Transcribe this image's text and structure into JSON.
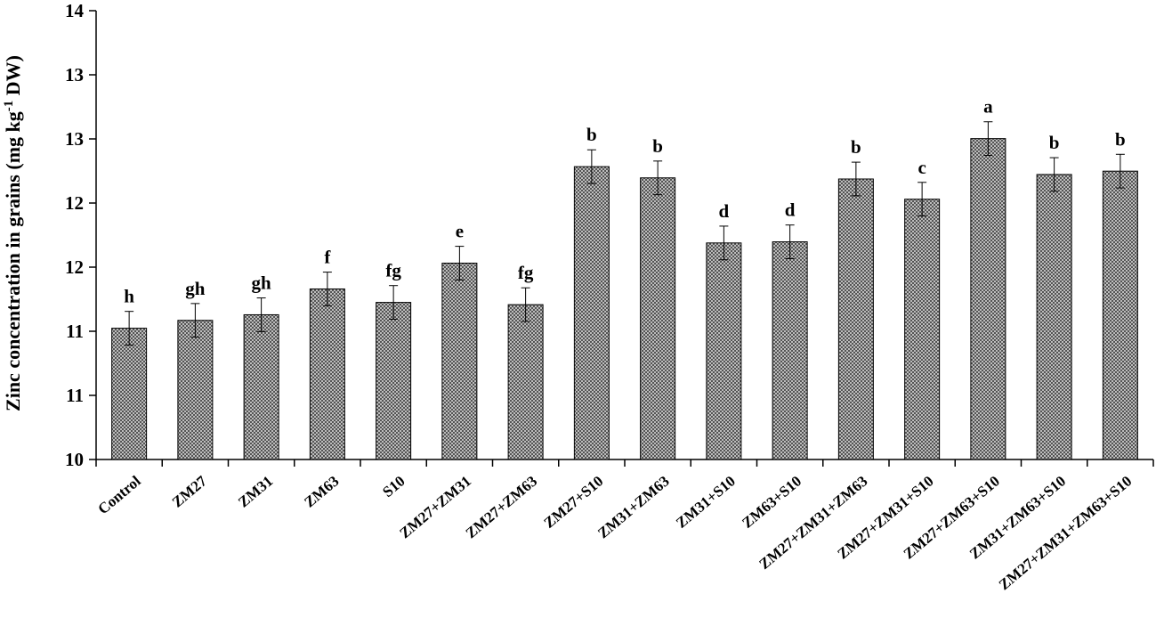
{
  "chart_data": {
    "type": "bar",
    "title": "",
    "xlabel": "",
    "ylabel": {
      "main": "Zinc concentration in grains (mg kg",
      "sup": "-1",
      "tail": " DW)"
    },
    "y_tick_labels": [
      "10",
      "11",
      "11",
      "12",
      "12",
      "13",
      "13",
      "14"
    ],
    "ylim": [
      10,
      14
    ],
    "grid": false,
    "legend": "none",
    "fill_pattern": "crosshatch",
    "bar_color": "#9a9a9a",
    "categories": [
      "Control",
      "ZM27",
      "ZM31",
      "ZM63",
      "S10",
      "ZM27+ZM31",
      "ZM27+ZM63",
      "ZM27+S10",
      "ZM31+ZM63",
      "ZM31+S10",
      "ZM63+S10",
      "ZM27+ZM31+ZM63",
      "ZM27+ZM31+S10",
      "ZM27+ZM63+S10",
      "ZM31+ZM63+S10",
      "ZM27+ZM31+ZM63+S10"
    ],
    "values": [
      11.17,
      11.24,
      11.29,
      11.52,
      11.4,
      11.75,
      11.38,
      12.61,
      12.51,
      11.93,
      11.94,
      12.5,
      12.32,
      12.86,
      12.54,
      12.57
    ],
    "errors": [
      0.15,
      0.15,
      0.15,
      0.15,
      0.15,
      0.15,
      0.15,
      0.15,
      0.15,
      0.15,
      0.15,
      0.15,
      0.15,
      0.15,
      0.15,
      0.15
    ],
    "significance_letters": [
      "h",
      "gh",
      "gh",
      "f",
      "fg",
      "e",
      "fg",
      "b",
      "b",
      "d",
      "d",
      "b",
      "c",
      "a",
      "b",
      "b"
    ]
  }
}
